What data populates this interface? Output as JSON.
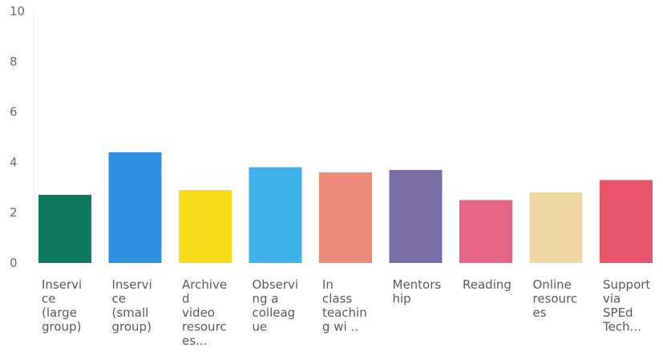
{
  "chart_data": {
    "type": "bar",
    "title": "",
    "xlabel": "",
    "ylabel": "",
    "ylim": [
      0,
      10
    ],
    "yticks": [
      0,
      2,
      4,
      6,
      8,
      10
    ],
    "grid": false,
    "legend": "none",
    "categories": [
      [
        "Inservi",
        "ce",
        "(large",
        "group)"
      ],
      [
        "Inservi",
        "ce",
        "(small",
        "group)"
      ],
      [
        "Archive",
        "d",
        "video",
        "resourc",
        "es..."
      ],
      [
        "Observi",
        "ng a",
        "colleag",
        "ue"
      ],
      [
        "In",
        "class",
        "teachin",
        "g wi .."
      ],
      [
        "Mentors",
        "hip"
      ],
      [
        "Reading"
      ],
      [
        "Online",
        "resourc",
        "es"
      ],
      [
        "Support",
        "via",
        "SPEd",
        "Tech..."
      ]
    ],
    "values": [
      2.7,
      4.4,
      2.9,
      3.8,
      3.6,
      3.7,
      2.5,
      2.8,
      3.3
    ],
    "colors": [
      "#0e7a5f",
      "#2f8fe0",
      "#f8dc1a",
      "#3fb0e8",
      "#ec8a7a",
      "#7b6ea7",
      "#e46684",
      "#efd7a4",
      "#e7546b"
    ]
  }
}
